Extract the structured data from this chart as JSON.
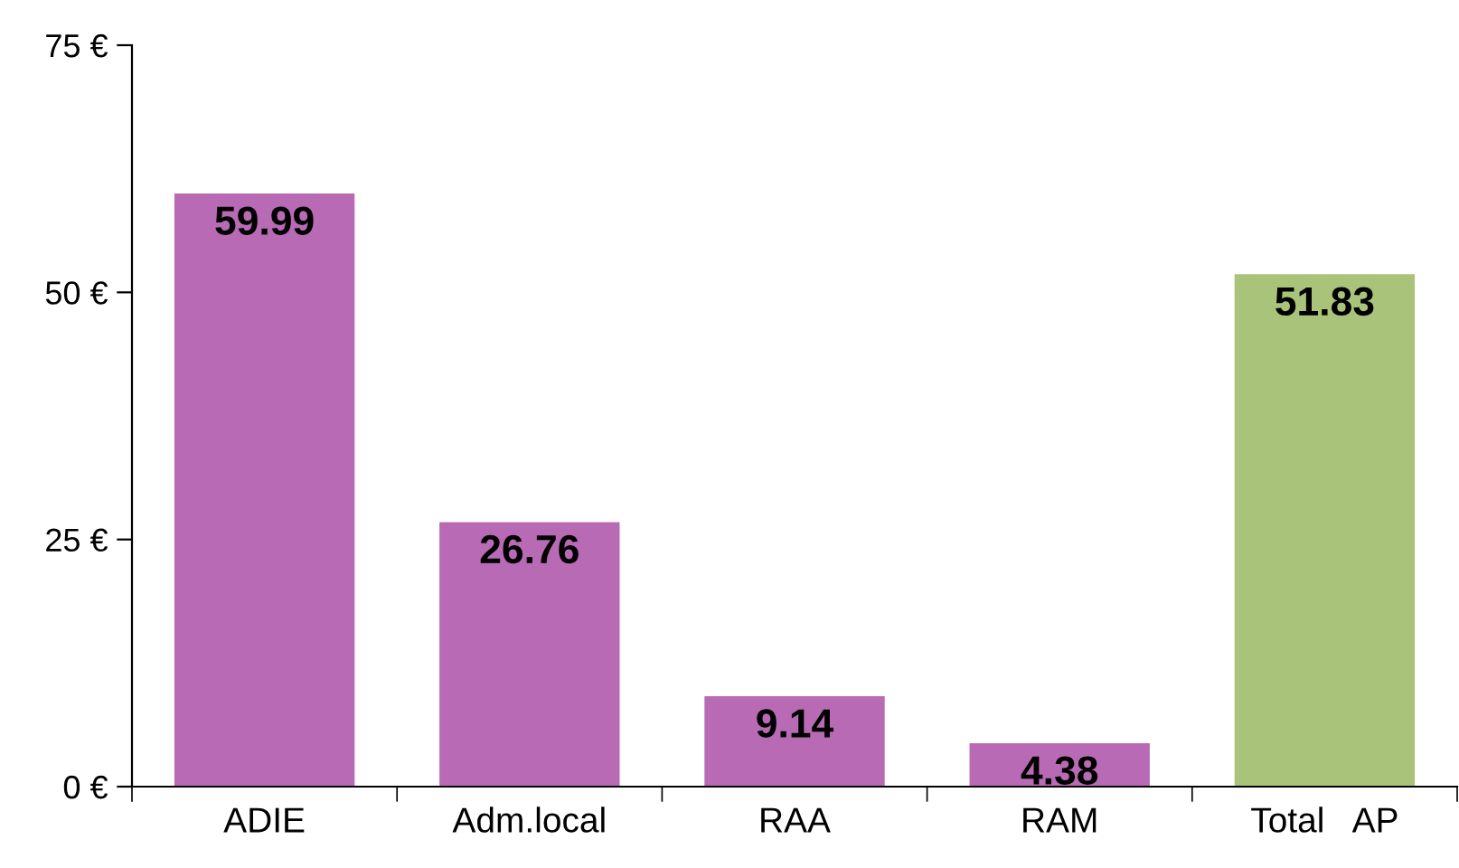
{
  "chart_data": {
    "type": "bar",
    "categories": [
      "ADIE",
      "Adm.local",
      "RAA",
      "RAM",
      "Total   AP"
    ],
    "values": [
      59.99,
      26.76,
      9.14,
      4.38,
      51.83
    ],
    "colors": [
      "#b86ab5",
      "#b86ab5",
      "#b86ab5",
      "#b86ab5",
      "#a9c47a"
    ],
    "ylim": [
      0,
      75
    ],
    "yticks": [
      {
        "value": 0,
        "label": "0 €"
      },
      {
        "value": 25,
        "label": "25 €"
      },
      {
        "value": 50,
        "label": "50 €"
      },
      {
        "value": 75,
        "label": "75 €"
      }
    ],
    "data_labels": true,
    "grid": false,
    "legend": false
  }
}
